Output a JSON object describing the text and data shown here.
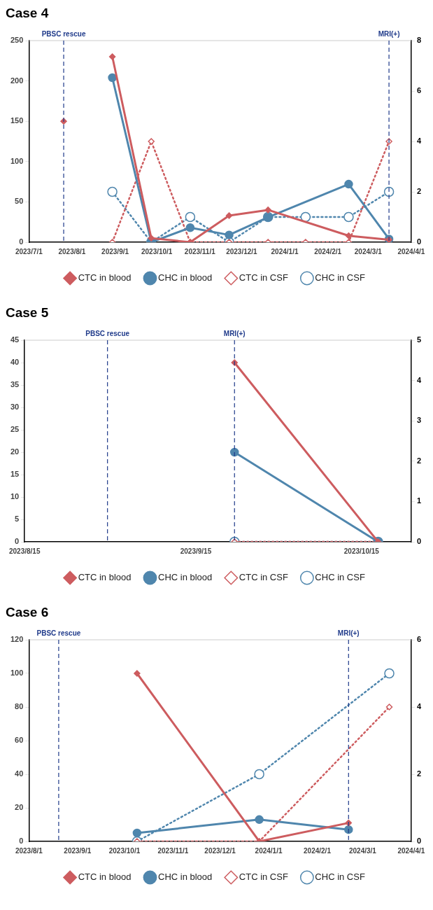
{
  "chart_data": [
    {
      "type": "line",
      "title": "Case 4",
      "legend": "bottom",
      "grid": false,
      "xlim": [
        "2023-07-01",
        "2024-04-01"
      ],
      "xticks": [
        {
          "value": "2023-07-01",
          "label": "2023/7/1"
        },
        {
          "value": "2023-08-01",
          "label": "2023/8/1"
        },
        {
          "value": "2023-09-01",
          "label": "2023/9/1"
        },
        {
          "value": "2023-10-01",
          "label": "2023/10/1"
        },
        {
          "value": "2023-11-01",
          "label": "2023/11/1"
        },
        {
          "value": "2023-12-01",
          "label": "2023/12/1"
        },
        {
          "value": "2024-01-01",
          "label": "2024/1/1"
        },
        {
          "value": "2024-02-01",
          "label": "2024/2/1"
        },
        {
          "value": "2024-03-01",
          "label": "2024/3/1"
        },
        {
          "value": "2024-04-01",
          "label": "2024/4/1"
        }
      ],
      "ylim": [
        0,
        250
      ],
      "yticks": [
        0,
        50,
        100,
        150,
        200,
        250
      ],
      "y2lim": [
        0,
        8
      ],
      "y2ticks": [
        0,
        2,
        4,
        6,
        8
      ],
      "ref_lines": [
        {
          "axis": "x",
          "value": "2023-07-26",
          "label": "PBSC rescue",
          "color": "#1f3a8a",
          "line_style": "dashed"
        },
        {
          "axis": "x",
          "value": "2024-03-16",
          "label": "MRI(+)",
          "color": "#1f3a8a",
          "line_style": "dashed"
        }
      ],
      "series": [
        {
          "name": "CTC in blood",
          "color": "#cd5c5f",
          "marker": "diamond",
          "line_style": "solid",
          "x": [
            "2023-07-26",
            "2023-08-13",
            "2023-08-30",
            "2023-09-27",
            "2023-10-25",
            "2023-11-22",
            "2023-12-20",
            "2024-02-16",
            "2024-03-16"
          ],
          "values": [
            150,
            null,
            230,
            5,
            0,
            33,
            40,
            8,
            3
          ]
        },
        {
          "name": "CHC in blood",
          "color": "#4f86ad",
          "marker": "circle",
          "line_style": "solid",
          "x": [
            "2023-08-30",
            "2023-09-27",
            "2023-10-25",
            "2023-11-22",
            "2023-12-20",
            "2024-02-16",
            "2024-03-16"
          ],
          "values": [
            204,
            0,
            18,
            9,
            31,
            72,
            4
          ]
        },
        {
          "name": "CTC in CSF",
          "color": "#cd5c5f",
          "marker": "diamond",
          "line_style": "dotted",
          "axis": "y2",
          "x": [
            "2023-08-30",
            "2023-09-27",
            "2023-10-25",
            "2023-11-22",
            "2023-12-20",
            "2024-01-16",
            "2024-02-16",
            "2024-03-16"
          ],
          "values": [
            0,
            4,
            0,
            0,
            0,
            0,
            0,
            4
          ]
        },
        {
          "name": "CHC in CSF",
          "color": "#4f86ad",
          "marker": "circle",
          "line_style": "dotted",
          "axis": "y2",
          "x": [
            "2023-08-30",
            "2023-09-27",
            "2023-10-25",
            "2023-11-22",
            "2023-12-20",
            "2024-01-16",
            "2024-02-16",
            "2024-03-16"
          ],
          "values": [
            2,
            0,
            1,
            0,
            1,
            1,
            1,
            2
          ]
        }
      ]
    },
    {
      "type": "line",
      "title": "Case 5",
      "legend": "bottom",
      "grid": false,
      "xlim": [
        "2023-08-15",
        "2023-10-24"
      ],
      "xticks": [
        {
          "value": "2023-08-15",
          "label": "2023/8/15"
        },
        {
          "value": "2023-09-15",
          "label": "2023/9/15"
        },
        {
          "value": "2023-10-15",
          "label": "2023/10/15"
        }
      ],
      "ylim": [
        0,
        45
      ],
      "yticks": [
        0,
        5,
        10,
        15,
        20,
        25,
        30,
        35,
        40,
        45
      ],
      "y2lim": [
        0,
        5
      ],
      "y2ticks": [
        0,
        1,
        2,
        3,
        4,
        5
      ],
      "ref_lines": [
        {
          "axis": "x",
          "value": "2023-08-30",
          "label": "PBSC rescue",
          "color": "#1f3a8a",
          "line_style": "dashed"
        },
        {
          "axis": "x",
          "value": "2023-09-22",
          "label": "MRI(+)",
          "color": "#1f3a8a",
          "line_style": "dashed"
        }
      ],
      "series": [
        {
          "name": "CTC in blood",
          "color": "#cd5c5f",
          "marker": "diamond",
          "line_style": "solid",
          "x": [
            "2023-09-22",
            "2023-10-18"
          ],
          "values": [
            40,
            0
          ]
        },
        {
          "name": "CHC in blood",
          "color": "#4f86ad",
          "marker": "circle",
          "line_style": "solid",
          "x": [
            "2023-09-22",
            "2023-10-18"
          ],
          "values": [
            20,
            0
          ]
        },
        {
          "name": "CTC in CSF",
          "color": "#cd5c5f",
          "marker": "diamond",
          "line_style": "dotted",
          "axis": "y2",
          "x": [
            "2023-09-22",
            "2023-10-18"
          ],
          "values": [
            0,
            0
          ]
        },
        {
          "name": "CHC in CSF",
          "color": "#4f86ad",
          "marker": "circle",
          "line_style": "dotted",
          "axis": "y2",
          "x": [
            "2023-09-22",
            "2023-10-18"
          ],
          "values": [
            0,
            0
          ]
        }
      ]
    },
    {
      "type": "line",
      "title": "Case 6",
      "legend": "bottom",
      "grid": false,
      "xlim": [
        "2023-08-01",
        "2024-04-01"
      ],
      "xticks": [
        {
          "value": "2023-08-01",
          "label": "2023/8/1"
        },
        {
          "value": "2023-09-01",
          "label": "2023/9/1"
        },
        {
          "value": "2023-10-01",
          "label": "2023/10/1"
        },
        {
          "value": "2023-11-01",
          "label": "2023/11/1"
        },
        {
          "value": "2023-12-01",
          "label": "2023/12/1"
        },
        {
          "value": "2024-01-01",
          "label": "2024/1/1"
        },
        {
          "value": "2024-02-01",
          "label": "2024/2/1"
        },
        {
          "value": "2024-03-01",
          "label": "2024/3/1"
        },
        {
          "value": "2024-04-01",
          "label": "2024/4/1"
        }
      ],
      "ylim": [
        0,
        120
      ],
      "yticks": [
        0,
        20,
        40,
        60,
        80,
        100,
        120
      ],
      "y2lim": [
        0,
        6
      ],
      "y2ticks": [
        0,
        2,
        4,
        6
      ],
      "ref_lines": [
        {
          "axis": "x",
          "value": "2023-08-20",
          "label": "PBSC rescue",
          "color": "#1f3a8a",
          "line_style": "dashed"
        },
        {
          "axis": "x",
          "value": "2024-02-21",
          "label": "MRI(+)",
          "color": "#1f3a8a",
          "line_style": "dashed"
        }
      ],
      "series": [
        {
          "name": "CTC in blood",
          "color": "#cd5c5f",
          "marker": "diamond",
          "line_style": "solid",
          "x": [
            "2023-10-09",
            "2023-12-26",
            "2024-02-21"
          ],
          "values": [
            100,
            0,
            11
          ]
        },
        {
          "name": "CHC in blood",
          "color": "#4f86ad",
          "marker": "circle",
          "line_style": "solid",
          "x": [
            "2023-10-09",
            "2023-12-26",
            "2024-02-21"
          ],
          "values": [
            5,
            13,
            7
          ]
        },
        {
          "name": "CTC in CSF",
          "color": "#cd5c5f",
          "marker": "diamond",
          "line_style": "dotted",
          "axis": "y2",
          "x": [
            "2023-10-09",
            "2023-12-26",
            "2024-03-18"
          ],
          "values": [
            0,
            0,
            4
          ]
        },
        {
          "name": "CHC in CSF",
          "color": "#4f86ad",
          "marker": "circle",
          "line_style": "dotted",
          "axis": "y2",
          "x": [
            "2023-10-09",
            "2023-12-26",
            "2024-03-18"
          ],
          "values": [
            0,
            2,
            5
          ]
        }
      ]
    }
  ]
}
